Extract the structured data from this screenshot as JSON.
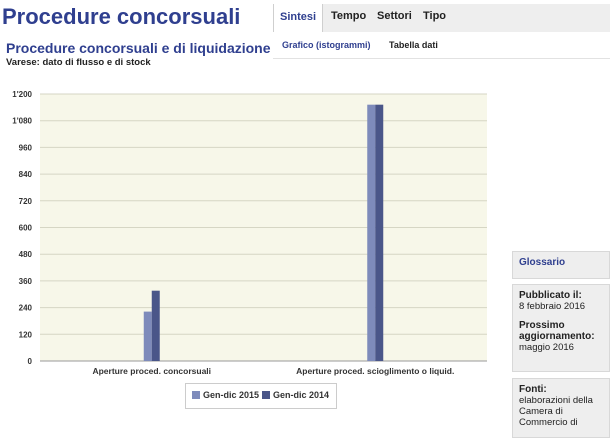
{
  "page": {
    "title": "Procedure concorsuali"
  },
  "tabs": [
    {
      "label": "Sintesi",
      "active": true
    },
    {
      "label": "Tempo",
      "active": false
    },
    {
      "label": "Settori",
      "active": false
    },
    {
      "label": "Tipo",
      "active": false
    }
  ],
  "subtabs": [
    {
      "label": "Grafico (istogrammi)",
      "active": true
    },
    {
      "label": "Tabella dati",
      "active": false
    }
  ],
  "sidebar": {
    "glossary_label": "Glossario",
    "published_label": "Pubblicato il:",
    "published_value": "8 febbraio 2016",
    "next_update_label": "Prossimo aggiornamento:",
    "next_update_value": "maggio 2016",
    "sources_label": "Fonti:",
    "sources_value": "elaborazioni della Camera di Commercio di"
  },
  "colors": {
    "accent": "#2f3f8f",
    "plot_background": "#f7f7e9",
    "series_2015": "#7e8bbb",
    "series_2014": "#4a5689"
  },
  "chart_data": {
    "type": "bar",
    "title": "Procedure concorsuali e di liquidazione",
    "subtitle": "Varese: dato di flusso e di stock",
    "categories": [
      "Aperture proced. concorsuali",
      "Aperture proced. scioglimento o liquid."
    ],
    "series": [
      {
        "name": "Gen-dic 2015",
        "values": [
          222,
          1152
        ]
      },
      {
        "name": "Gen-dic 2014",
        "values": [
          316,
          1152
        ]
      }
    ],
    "y_ticks": [
      "1'200",
      "1'080",
      "960",
      "840",
      "720",
      "600",
      "480",
      "360",
      "240",
      "120",
      "0"
    ],
    "ylim": [
      0,
      1200
    ],
    "grid": true,
    "legend_position": "bottom"
  }
}
